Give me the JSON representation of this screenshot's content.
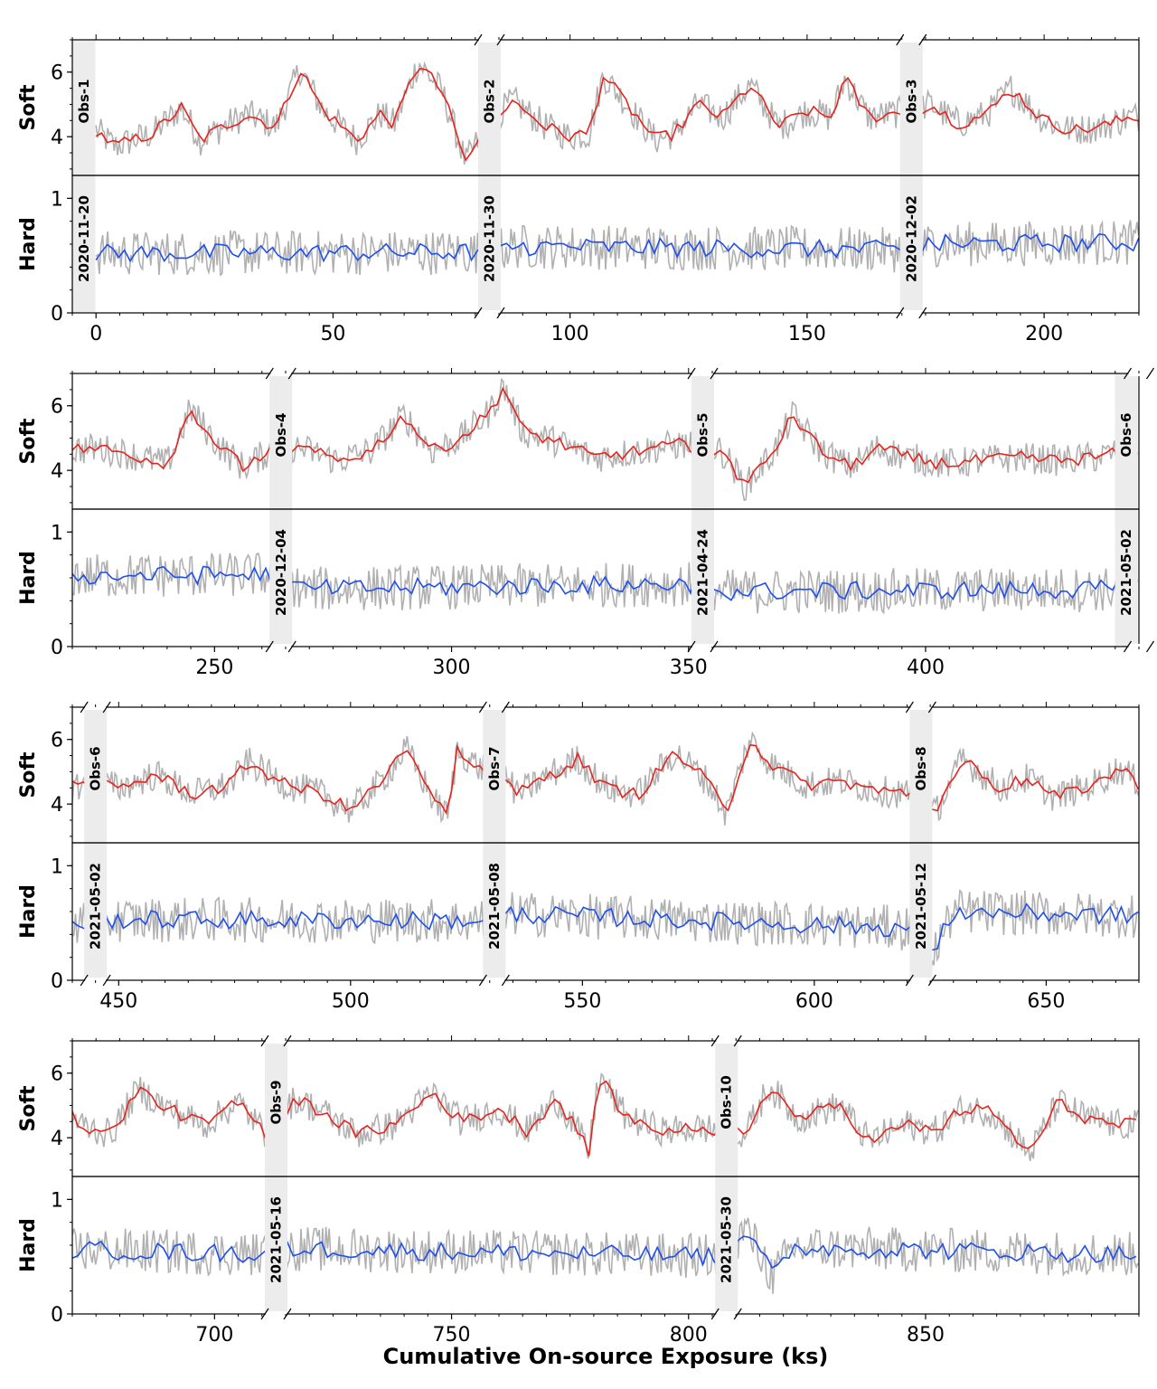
{
  "chart_data": {
    "type": "line",
    "xlabel": "Cumulative On-source Exposure (ks)",
    "series_names": [
      "Soft",
      "Hard"
    ],
    "series_colors": {
      "soft": "#e8221c",
      "hard": "#1f4ef0",
      "raw": "#b0b0b0",
      "gap": "#ececec"
    },
    "soft_ylim": [
      2.8,
      7.0
    ],
    "hard_ylim": [
      0.0,
      1.2
    ],
    "soft_ticks": [
      4,
      6
    ],
    "hard_ticks": [
      0,
      1
    ],
    "observations": [
      {
        "label": "Obs-1",
        "date": "2020-11-20",
        "start": 0,
        "end": 83
      },
      {
        "label": "Obs-2",
        "date": "2020-11-30",
        "start": 83,
        "end": 172
      },
      {
        "label": "Obs-3",
        "date": "2020-12-02",
        "start": 172,
        "end": 264
      },
      {
        "label": "Obs-4",
        "date": "2020-12-04",
        "start": 264,
        "end": 353
      },
      {
        "label": "Obs-5",
        "date": "2021-04-24",
        "start": 353,
        "end": 445
      },
      {
        "label": "Obs-6",
        "date": "2021-05-02",
        "start": 445,
        "end": 531
      },
      {
        "label": "Obs-7",
        "date": "2021-05-08",
        "start": 531,
        "end": 623
      },
      {
        "label": "Obs-8",
        "date": "2021-05-12",
        "start": 623,
        "end": 713
      },
      {
        "label": "Obs-9",
        "date": "2021-05-16",
        "start": 713,
        "end": 808
      },
      {
        "label": "Obs-10",
        "date": "2021-05-30",
        "start": 808,
        "end": 895
      }
    ],
    "rows": [
      {
        "xlim": [
          -5,
          220
        ],
        "xticks": [
          0,
          50,
          100,
          150,
          200
        ]
      },
      {
        "xlim": [
          220,
          445
        ],
        "xticks": [
          250,
          300,
          350,
          400
        ]
      },
      {
        "xlim": [
          440,
          670
        ],
        "xticks": [
          450,
          500,
          550,
          600,
          650
        ]
      },
      {
        "xlim": [
          670,
          895
        ],
        "xticks": [
          700,
          750,
          800,
          850
        ]
      }
    ],
    "soft_knots": [
      [
        0,
        4.2
      ],
      [
        4,
        3.7
      ],
      [
        12,
        4.1
      ],
      [
        18,
        4.9
      ],
      [
        22,
        3.9
      ],
      [
        28,
        4.4
      ],
      [
        32,
        4.7
      ],
      [
        38,
        4.3
      ],
      [
        43,
        6.1
      ],
      [
        48,
        4.8
      ],
      [
        55,
        3.9
      ],
      [
        60,
        4.7
      ],
      [
        63,
        4.4
      ],
      [
        68,
        6.3
      ],
      [
        73,
        5.4
      ],
      [
        78,
        3.2
      ],
      [
        83,
        4.5
      ],
      [
        88,
        5.1
      ],
      [
        95,
        4.3
      ],
      [
        100,
        4.0
      ],
      [
        104,
        4.1
      ],
      [
        107,
        5.9
      ],
      [
        112,
        5.0
      ],
      [
        118,
        3.9
      ],
      [
        122,
        4.1
      ],
      [
        127,
        5.0
      ],
      [
        132,
        4.6
      ],
      [
        138,
        5.6
      ],
      [
        144,
        4.3
      ],
      [
        150,
        4.8
      ],
      [
        155,
        4.6
      ],
      [
        158,
        5.8
      ],
      [
        163,
        4.6
      ],
      [
        172,
        4.8
      ],
      [
        176,
        5.0
      ],
      [
        182,
        4.4
      ],
      [
        188,
        4.7
      ],
      [
        193,
        5.5
      ],
      [
        200,
        4.5
      ],
      [
        206,
        4.2
      ],
      [
        212,
        4.3
      ],
      [
        218,
        4.6
      ],
      [
        225,
        4.7
      ],
      [
        232,
        4.5
      ],
      [
        240,
        4.2
      ],
      [
        245,
        5.9
      ],
      [
        250,
        4.9
      ],
      [
        256,
        4.1
      ],
      [
        264,
        4.8
      ],
      [
        270,
        4.6
      ],
      [
        276,
        4.3
      ],
      [
        283,
        4.6
      ],
      [
        290,
        5.7
      ],
      [
        296,
        4.6
      ],
      [
        302,
        5.0
      ],
      [
        308,
        5.8
      ],
      [
        311,
        6.6
      ],
      [
        315,
        5.2
      ],
      [
        322,
        4.9
      ],
      [
        330,
        4.4
      ],
      [
        340,
        4.6
      ],
      [
        348,
        4.8
      ],
      [
        353,
        4.7
      ],
      [
        357,
        4.6
      ],
      [
        362,
        3.5
      ],
      [
        368,
        4.6
      ],
      [
        372,
        5.7
      ],
      [
        378,
        4.6
      ],
      [
        384,
        4.1
      ],
      [
        390,
        4.7
      ],
      [
        396,
        4.4
      ],
      [
        404,
        4.2
      ],
      [
        412,
        4.3
      ],
      [
        420,
        4.4
      ],
      [
        428,
        4.3
      ],
      [
        436,
        4.4
      ],
      [
        445,
        4.7
      ],
      [
        450,
        4.5
      ],
      [
        458,
        4.9
      ],
      [
        466,
        4.3
      ],
      [
        474,
        4.6
      ],
      [
        478,
        5.3
      ],
      [
        486,
        4.6
      ],
      [
        494,
        4.3
      ],
      [
        500,
        3.8
      ],
      [
        506,
        4.6
      ],
      [
        512,
        5.7
      ],
      [
        518,
        4.1
      ],
      [
        521,
        3.6
      ],
      [
        523,
        5.7
      ],
      [
        528,
        5.1
      ],
      [
        531,
        5.3
      ],
      [
        536,
        4.3
      ],
      [
        543,
        4.9
      ],
      [
        549,
        5.4
      ],
      [
        555,
        4.5
      ],
      [
        562,
        4.3
      ],
      [
        570,
        5.6
      ],
      [
        577,
        4.7
      ],
      [
        581,
        3.7
      ],
      [
        586,
        6.0
      ],
      [
        591,
        5.2
      ],
      [
        598,
        4.6
      ],
      [
        606,
        4.7
      ],
      [
        614,
        4.4
      ],
      [
        623,
        4.3
      ],
      [
        626,
        3.7
      ],
      [
        632,
        5.4
      ],
      [
        640,
        4.5
      ],
      [
        646,
        4.8
      ],
      [
        652,
        4.2
      ],
      [
        660,
        4.6
      ],
      [
        666,
        5.1
      ],
      [
        672,
        4.4
      ],
      [
        678,
        4.1
      ],
      [
        684,
        5.5
      ],
      [
        690,
        4.9
      ],
      [
        698,
        4.4
      ],
      [
        705,
        5.1
      ],
      [
        711,
        4.1
      ],
      [
        713,
        4.5
      ],
      [
        717,
        5.2
      ],
      [
        723,
        4.8
      ],
      [
        730,
        4.1
      ],
      [
        738,
        4.4
      ],
      [
        746,
        5.4
      ],
      [
        752,
        4.5
      ],
      [
        760,
        4.9
      ],
      [
        766,
        4.2
      ],
      [
        772,
        5.2
      ],
      [
        776,
        4.4
      ],
      [
        779,
        3.5
      ],
      [
        781,
        5.9
      ],
      [
        787,
        4.6
      ],
      [
        795,
        4.2
      ],
      [
        803,
        4.3
      ],
      [
        808,
        4.2
      ],
      [
        812,
        4.1
      ],
      [
        817,
        5.6
      ],
      [
        823,
        4.6
      ],
      [
        832,
        5.0
      ],
      [
        838,
        3.9
      ],
      [
        846,
        4.4
      ],
      [
        852,
        4.2
      ],
      [
        858,
        4.9
      ],
      [
        864,
        4.8
      ],
      [
        872,
        3.5
      ],
      [
        878,
        5.1
      ],
      [
        884,
        4.6
      ],
      [
        890,
        4.4
      ],
      [
        895,
        4.4
      ]
    ],
    "hard_knots": [
      [
        0,
        0.52
      ],
      [
        83,
        0.53
      ],
      [
        88,
        0.58
      ],
      [
        172,
        0.55
      ],
      [
        176,
        0.6
      ],
      [
        264,
        0.63
      ],
      [
        268,
        0.5
      ],
      [
        353,
        0.55
      ],
      [
        357,
        0.48
      ],
      [
        445,
        0.5
      ],
      [
        450,
        0.53
      ],
      [
        531,
        0.52
      ],
      [
        535,
        0.58
      ],
      [
        623,
        0.45
      ],
      [
        625,
        0.18
      ],
      [
        630,
        0.6
      ],
      [
        713,
        0.52
      ],
      [
        717,
        0.57
      ],
      [
        808,
        0.5
      ],
      [
        812,
        0.75
      ],
      [
        818,
        0.32
      ],
      [
        822,
        0.58
      ],
      [
        895,
        0.52
      ]
    ]
  }
}
